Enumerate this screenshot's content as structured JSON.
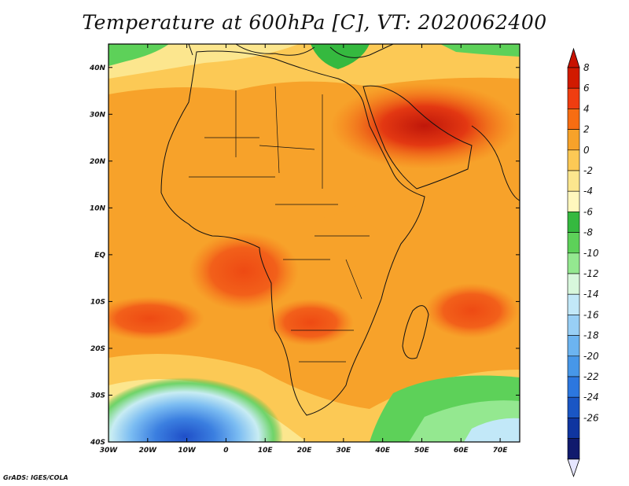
{
  "title": "Temperature at 600hPa [C], VT: 2020062400",
  "footer": "GrADS: IGES/COLA",
  "map": {
    "lon_range": [
      -30,
      75
    ],
    "lat_range": [
      -40,
      45
    ],
    "lon_ticks": [
      {
        "value": -30,
        "label": "30W"
      },
      {
        "value": -20,
        "label": "20W"
      },
      {
        "value": -10,
        "label": "10W"
      },
      {
        "value": 0,
        "label": "0"
      },
      {
        "value": 10,
        "label": "10E"
      },
      {
        "value": 20,
        "label": "20E"
      },
      {
        "value": 30,
        "label": "30E"
      },
      {
        "value": 40,
        "label": "40E"
      },
      {
        "value": 50,
        "label": "50E"
      },
      {
        "value": 60,
        "label": "60E"
      },
      {
        "value": 70,
        "label": "70E"
      }
    ],
    "lat_ticks": [
      {
        "value": 40,
        "label": "40N"
      },
      {
        "value": 30,
        "label": "30N"
      },
      {
        "value": 20,
        "label": "20N"
      },
      {
        "value": 10,
        "label": "10N"
      },
      {
        "value": 0,
        "label": "EQ"
      },
      {
        "value": -10,
        "label": "10S"
      },
      {
        "value": -20,
        "label": "20S"
      },
      {
        "value": -30,
        "label": "30S"
      },
      {
        "value": -40,
        "label": "40S"
      }
    ]
  },
  "colorbar": {
    "levels": [
      8,
      6,
      4,
      2,
      0,
      -2,
      -4,
      -6,
      -8,
      -10,
      -12,
      -14,
      -16,
      -18,
      -20,
      -22,
      -24,
      -26
    ],
    "colors": [
      "#d11a00",
      "#ef3d10",
      "#f76d12",
      "#f7a22a",
      "#fcc955",
      "#fce68e",
      "#fff7bd",
      "#35b93f",
      "#5dd159",
      "#94e890",
      "#d8f7dc",
      "#c2e8f8",
      "#98cff5",
      "#6cb4f0",
      "#4797e8",
      "#2c77df",
      "#1a56c4",
      "#0f35a0",
      "#101a6d"
    ],
    "over_color": "#c81200",
    "under_color": "#e6e6ff"
  }
}
